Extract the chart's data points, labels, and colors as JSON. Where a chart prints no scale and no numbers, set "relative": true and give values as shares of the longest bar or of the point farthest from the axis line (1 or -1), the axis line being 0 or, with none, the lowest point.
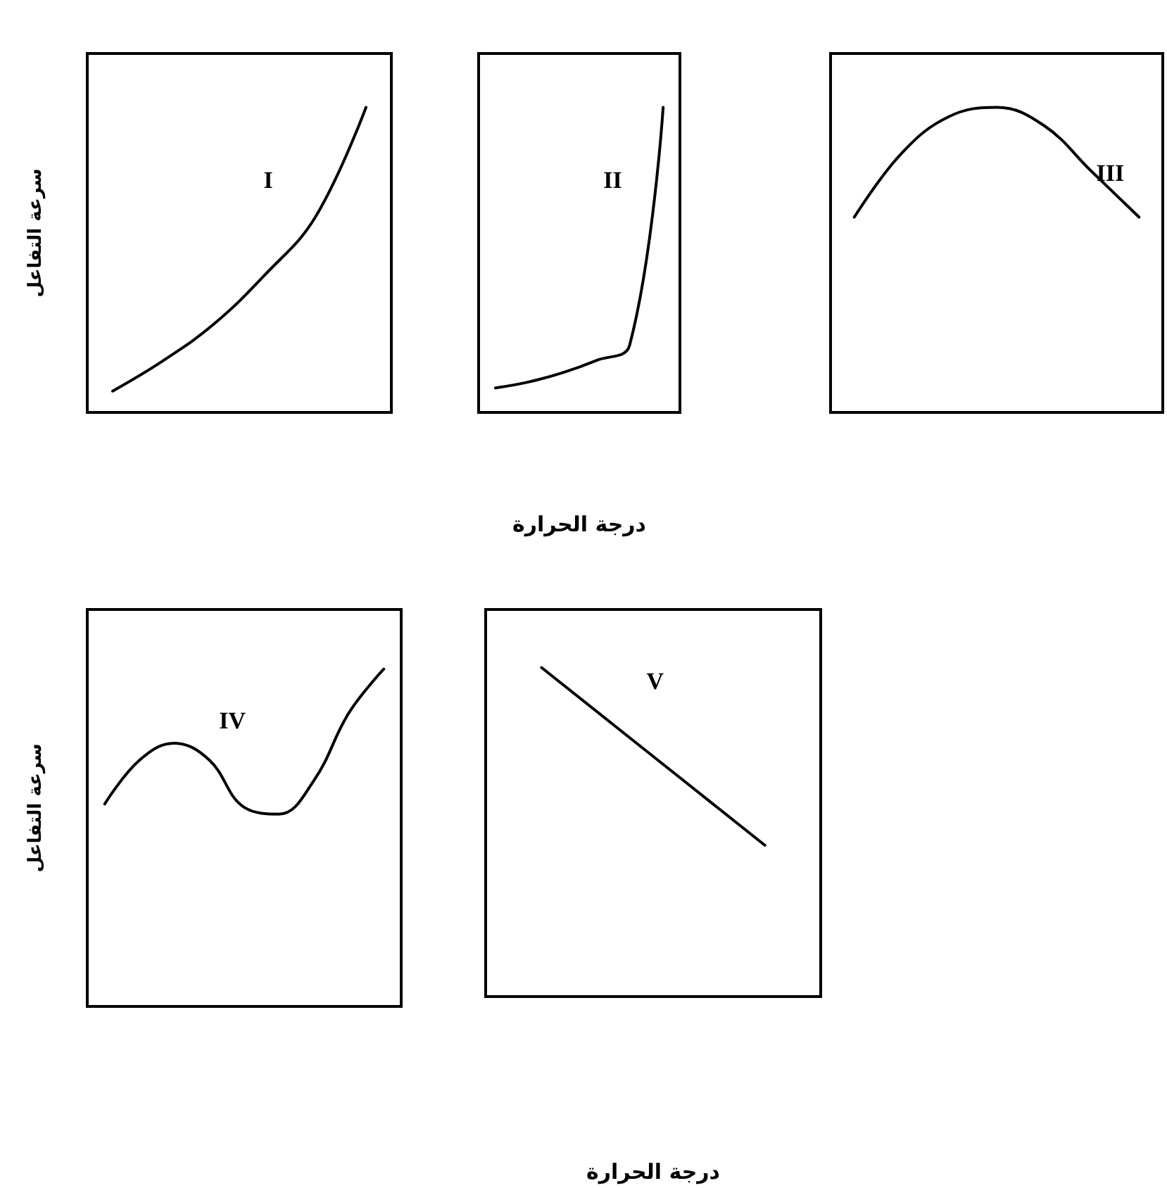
{
  "chart_data": [
    {
      "type": "line",
      "relative": true,
      "ylabel": "سرعة التفاعل",
      "annotations": [
        "I"
      ],
      "marker": "none",
      "categories": [
        null,
        null,
        null,
        null,
        null,
        null
      ],
      "series": [
        {
          "color": "#000000",
          "values": [
            0.07,
            0.17,
            0.29,
            0.45,
            0.64,
            1
          ]
        }
      ]
    },
    {
      "type": "line",
      "relative": true,
      "xlabel": "درجة الحرارة",
      "annotations": [
        "II"
      ],
      "marker": "none",
      "categories": [
        null,
        null,
        null,
        null,
        null,
        null
      ],
      "series": [
        {
          "color": "#000000",
          "values": [
            0.08,
            0.1,
            0.13,
            0.17,
            0.22,
            1
          ]
        }
      ]
    },
    {
      "type": "line",
      "relative": true,
      "annotations": [
        "III"
      ],
      "marker": "none",
      "categories": [
        null,
        null,
        null,
        null,
        null,
        null,
        null
      ],
      "series": [
        {
          "color": "#000000",
          "values": [
            0.64,
            0.85,
            0.97,
            1,
            0.94,
            0.79,
            0.64
          ]
        }
      ]
    },
    {
      "type": "line",
      "relative": true,
      "ylabel": "سرعة التفاعل",
      "annotations": [
        "IV"
      ],
      "marker": "none",
      "categories": [
        null,
        null,
        null,
        null,
        null,
        null,
        null,
        null,
        null
      ],
      "series": [
        {
          "color": "#000000",
          "values": [
            0.6,
            0.73,
            0.78,
            0.73,
            0.59,
            0.57,
            0.67,
            0.87,
            1
          ]
        }
      ]
    },
    {
      "type": "line",
      "relative": true,
      "xlabel": "درجة الحرارة",
      "annotations": [
        "V"
      ],
      "marker": "none",
      "categories": [
        null,
        null,
        null
      ],
      "series": [
        {
          "color": "#000000",
          "values": [
            1,
            0.73,
            0.46
          ]
        }
      ]
    }
  ]
}
